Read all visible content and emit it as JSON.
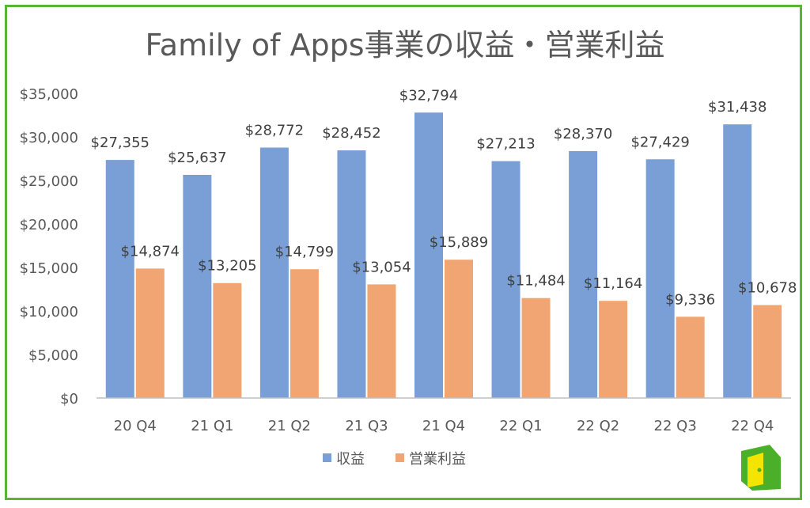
{
  "chart_data": {
    "type": "bar",
    "title": "Family of Apps事業の収益・営業利益",
    "categories": [
      "20 Q4",
      "21 Q1",
      "21 Q2",
      "21 Q3",
      "21 Q4",
      "22 Q1",
      "22 Q2",
      "22 Q3",
      "22 Q4"
    ],
    "series": [
      {
        "name": "収益",
        "color": "#7a9fd6",
        "values": [
          27355,
          25637,
          28772,
          28452,
          32794,
          27213,
          28370,
          27429,
          31438
        ],
        "labels": [
          "$27,355",
          "$25,637",
          "$28,772",
          "$28,452",
          "$32,794",
          "$27,213",
          "$28,370",
          "$27,429",
          "$31,438"
        ]
      },
      {
        "name": "営業利益",
        "color": "#f0a572",
        "values": [
          14874,
          13205,
          14799,
          13054,
          15889,
          11484,
          11164,
          9336,
          10678
        ],
        "labels": [
          "$14,874",
          "$13,205",
          "$14,799",
          "$13,054",
          "$15,889",
          "$11,484",
          "$11,164",
          "$9,336",
          "$10,678"
        ]
      }
    ],
    "ylim": [
      0,
      35000
    ],
    "yticks": [
      0,
      5000,
      10000,
      15000,
      20000,
      25000,
      30000,
      35000
    ],
    "ytick_labels": [
      "$0",
      "$5,000",
      "$10,000",
      "$15,000",
      "$20,000",
      "$25,000",
      "$30,000",
      "$35,000"
    ],
    "grid": false,
    "legend_position": "bottom",
    "xlabel": "",
    "ylabel": ""
  },
  "colors": {
    "frame_border": "#5bb535",
    "axis": "#bfbfbf",
    "logo_green": "#4caf2a",
    "logo_yellow": "#f4e400"
  },
  "logo": {
    "icon": "door-icon"
  }
}
